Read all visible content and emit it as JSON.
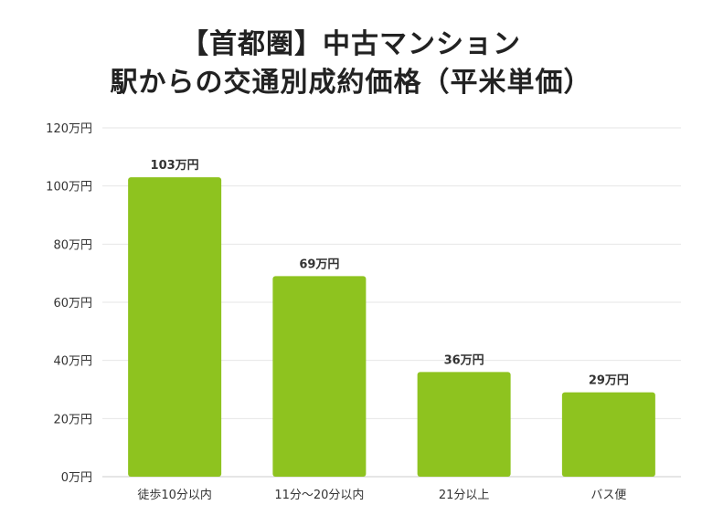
{
  "title": {
    "line1": "【首都圏】中古マンション",
    "line2": "駅からの交通別成約価格（平米単価）"
  },
  "colors": {
    "bar": "#8ec31f",
    "grid": "#e6e6e6",
    "axis": "#cccccc"
  },
  "chart_data": {
    "type": "bar",
    "categories": [
      "徒歩10分以内",
      "11分～20分以内",
      "21分以上",
      "バス便"
    ],
    "values": [
      103,
      69,
      36,
      29
    ],
    "data_labels": [
      "103万円",
      "69万円",
      "36万円",
      "29万円"
    ],
    "title": "【首都圏】中古マンション 駅からの交通別成約価格（平米単価）",
    "xlabel": "",
    "ylabel": "",
    "unit": "万円",
    "ylim": [
      0,
      120
    ],
    "yticks": [
      0,
      20,
      40,
      60,
      80,
      100,
      120
    ],
    "ytick_labels": [
      "0万円",
      "20万円",
      "40万円",
      "60万円",
      "80万円",
      "100万円",
      "120万円"
    ],
    "grid": true,
    "legend": "none"
  }
}
